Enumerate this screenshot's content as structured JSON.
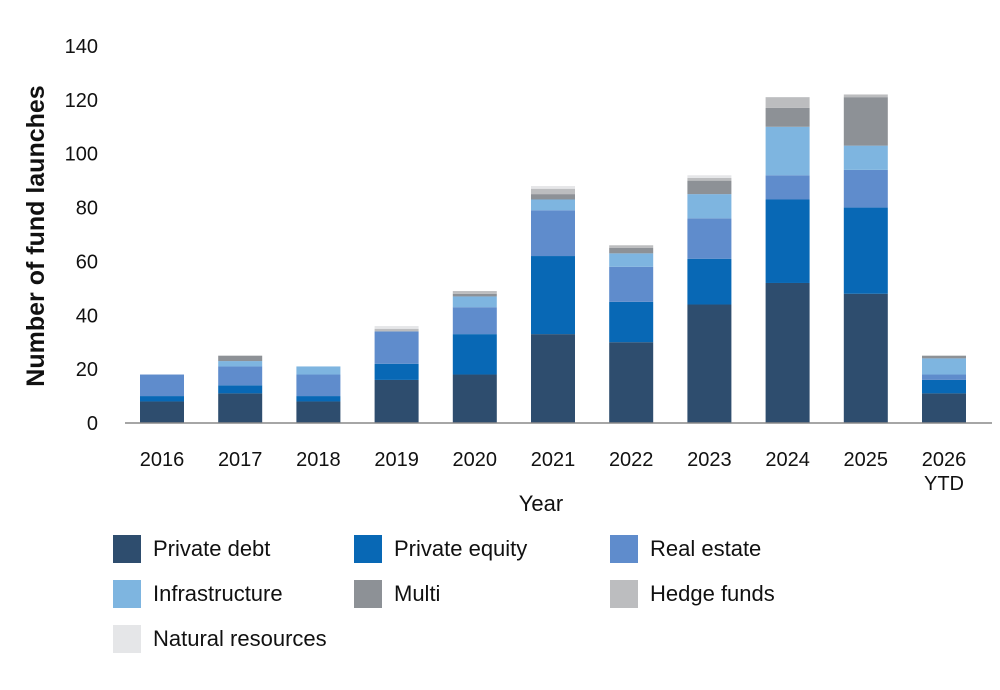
{
  "chart_data": {
    "type": "bar",
    "stacked": true,
    "title": "",
    "xlabel": "Year",
    "ylabel": "Number of fund launches",
    "ylim": [
      0,
      140
    ],
    "yticks": [
      0,
      20,
      40,
      60,
      80,
      100,
      120,
      140
    ],
    "grid": false,
    "legend_position": "bottom",
    "categories": [
      "2016",
      "2017",
      "2018",
      "2019",
      "2020",
      "2021",
      "2022",
      "2023",
      "2024",
      "2025",
      "2026 YTD"
    ],
    "series": [
      {
        "name": "Private debt",
        "color": "#2e4d6e",
        "values": [
          8,
          11,
          8,
          16,
          18,
          33,
          30,
          44,
          52,
          48,
          11
        ]
      },
      {
        "name": "Private equity",
        "color": "#0868b5",
        "values": [
          2,
          3,
          2,
          6,
          15,
          29,
          15,
          17,
          31,
          32,
          5
        ]
      },
      {
        "name": "Real estate",
        "color": "#5f8ccc",
        "values": [
          8,
          7,
          8,
          12,
          10,
          17,
          13,
          15,
          9,
          14,
          2
        ]
      },
      {
        "name": "Infrastructure",
        "color": "#7eb5e0",
        "values": [
          0,
          2,
          3,
          0,
          4,
          4,
          5,
          9,
          18,
          9,
          6
        ]
      },
      {
        "name": "Multi",
        "color": "#8d9196",
        "values": [
          0,
          2,
          0,
          0,
          1,
          2,
          2,
          5,
          7,
          18,
          1
        ]
      },
      {
        "name": "Hedge funds",
        "color": "#bcbdbf",
        "values": [
          0,
          0,
          0,
          1,
          1,
          2,
          1,
          1,
          4,
          1,
          0
        ]
      },
      {
        "name": "Natural resources",
        "color": "#e5e6e8",
        "values": [
          0,
          0,
          0,
          1,
          0,
          1,
          0,
          1,
          0,
          0,
          0
        ]
      }
    ]
  }
}
